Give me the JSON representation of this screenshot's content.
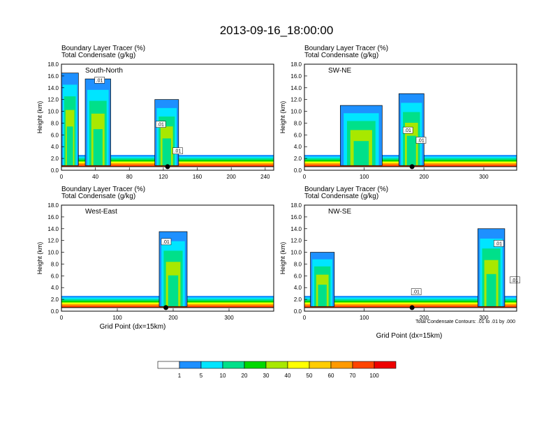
{
  "title": "2013-09-16_18:00:00",
  "shade_title": "Boundary Layer Tracer   (%)",
  "contour_title": "Total Condensate   (g/kg)",
  "ylabel": "Height (km)",
  "xlabel": "Grid Point (dx=15km)",
  "contour_note": "Total Condensate Contours: .01 to .01 by .000",
  "contour_label": ".01",
  "colorbar": {
    "labels": [
      "1",
      "5",
      "10",
      "20",
      "30",
      "40",
      "50",
      "60",
      "70",
      "100"
    ],
    "colors": [
      "#ffffff",
      "#1e90ff",
      "#00e5ff",
      "#00e08a",
      "#00d800",
      "#a8e800",
      "#ffff00",
      "#ffcc00",
      "#ff9900",
      "#ff4400",
      "#ee0000"
    ]
  },
  "chart_data": [
    {
      "type": "heatmap",
      "label": "South-North",
      "xlim": [
        0,
        250
      ],
      "xticks": [
        0,
        40,
        80,
        120,
        160,
        200,
        240
      ],
      "ylim": [
        0,
        18
      ],
      "yticks": [
        "0.0",
        "2.0",
        "4.0",
        "6.0",
        "8.0",
        "10.0",
        "12.0",
        "14.0",
        "16.0",
        "18.0"
      ],
      "marker_x": 125,
      "columns": [
        {
          "x": [
            0,
            20
          ],
          "top": 16.5
        },
        {
          "x": [
            28,
            58
          ],
          "top": 15.5
        },
        {
          "x": [
            110,
            138
          ],
          "top": 12
        }
      ],
      "contour_labels": [
        {
          "x": 40,
          "y": 15
        },
        {
          "x": 112,
          "y": 7.5
        },
        {
          "x": 132,
          "y": 3
        }
      ]
    },
    {
      "type": "heatmap",
      "label": "SW-NE",
      "xlim": [
        0,
        355
      ],
      "xticks": [
        0,
        100,
        200,
        300
      ],
      "ylim": [
        0,
        18
      ],
      "yticks": [
        "0.0",
        "2.0",
        "4.0",
        "6.0",
        "8.0",
        "10.0",
        "12.0",
        "14.0",
        "16.0",
        "18.0"
      ],
      "marker_x": 180,
      "columns": [
        {
          "x": [
            60,
            130
          ],
          "top": 11
        },
        {
          "x": [
            158,
            200
          ],
          "top": 13
        }
      ],
      "contour_labels": [
        {
          "x": 166,
          "y": 6.5
        },
        {
          "x": 188,
          "y": 4.8
        }
      ]
    },
    {
      "type": "heatmap",
      "label": "West-East",
      "xlim": [
        0,
        380
      ],
      "xticks": [
        0,
        100,
        200,
        300
      ],
      "ylim": [
        0,
        18
      ],
      "yticks": [
        "0.0",
        "2.0",
        "4.0",
        "6.0",
        "8.0",
        "10.0",
        "12.0",
        "14.0",
        "16.0",
        "18.0"
      ],
      "marker_x": 187,
      "columns": [
        {
          "x": [
            175,
            225
          ],
          "top": 13.5
        }
      ],
      "contour_labels": [
        {
          "x": 180,
          "y": 11.5
        }
      ]
    },
    {
      "type": "heatmap",
      "label": "NW-SE",
      "xlim": [
        0,
        355
      ],
      "xticks": [
        0,
        100,
        200,
        300
      ],
      "ylim": [
        0,
        18
      ],
      "yticks": [
        "0.0",
        "2.0",
        "4.0",
        "6.0",
        "8.0",
        "10.0",
        "12.0",
        "14.0",
        "16.0",
        "18.0"
      ],
      "marker_x": 180,
      "columns": [
        {
          "x": [
            10,
            50
          ],
          "top": 10
        },
        {
          "x": [
            290,
            335
          ],
          "top": 14
        }
      ],
      "contour_labels": [
        {
          "x": 180,
          "y": 3
        },
        {
          "x": 318,
          "y": 11.2
        },
        {
          "x": 345,
          "y": 5
        }
      ]
    }
  ]
}
